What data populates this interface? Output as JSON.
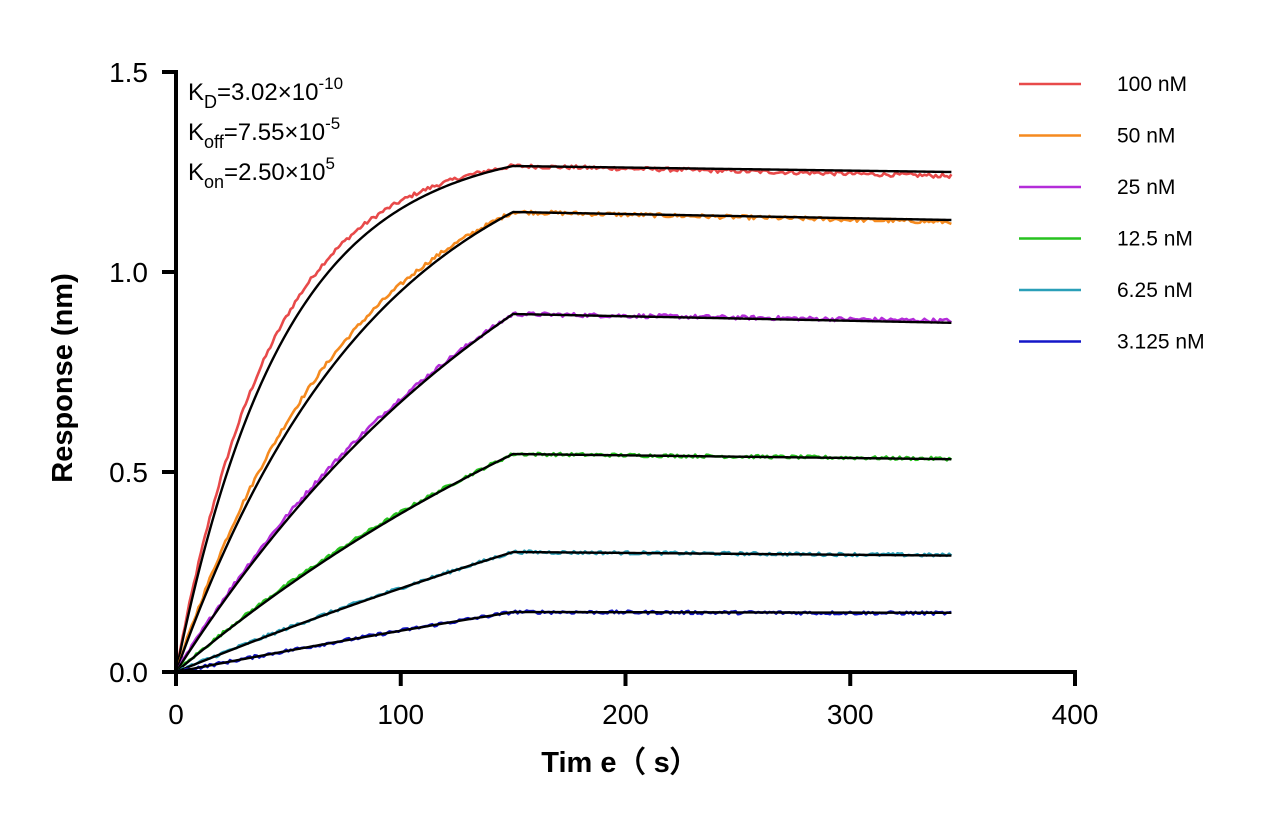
{
  "chart_data": {
    "type": "line",
    "title": "",
    "xlabel": "Tim e（ s）",
    "ylabel": "Response (nm)",
    "xlim": [
      0,
      400
    ],
    "ylim": [
      0,
      1.5
    ],
    "x_ticks": [
      "0",
      "100",
      "200",
      "300",
      "400"
    ],
    "y_ticks": [
      "0.0",
      "0.5",
      "1.0",
      "1.5"
    ],
    "grid": false,
    "legend_position": "top-right",
    "association_end": 150,
    "dissociation_end": 345,
    "fit_color": "#000000",
    "series": [
      {
        "name": "100 nM",
        "color": "#e84a4a",
        "plateau": 1.265,
        "tau": 43,
        "plateau_end": 1.24,
        "fit_end": 1.25
      },
      {
        "name": "50 nM",
        "color": "#f58a1f",
        "plateau": 1.15,
        "tau": 80,
        "plateau_end": 1.125,
        "fit_end": 1.13
      },
      {
        "name": "25 nM",
        "color": "#b42cd9",
        "plateau": 0.895,
        "tau": 160,
        "plateau_end": 0.878,
        "fit_end": 0.873
      },
      {
        "name": "12.5 nM",
        "color": "#27c21f",
        "plateau": 0.545,
        "tau": 240,
        "plateau_end": 0.533,
        "fit_end": 0.532
      },
      {
        "name": "6.25 nM",
        "color": "#2a9fb8",
        "plateau": 0.3,
        "tau": 480,
        "plateau_end": 0.292,
        "fit_end": 0.291
      },
      {
        "name": "3.125 nM",
        "color": "#1416c8",
        "plateau": 0.15,
        "tau": 700,
        "plateau_end": 0.147,
        "fit_end": 0.148
      }
    ],
    "annotations": [
      {
        "main": "K",
        "sub": "D",
        "value": "=3.02×10",
        "exp": "-10"
      },
      {
        "main": "K",
        "sub": "off",
        "value": "=7.55×10",
        "exp": "-5"
      },
      {
        "main": "K",
        "sub": "on",
        "value": "=2.50×10",
        "exp": "5"
      }
    ]
  }
}
